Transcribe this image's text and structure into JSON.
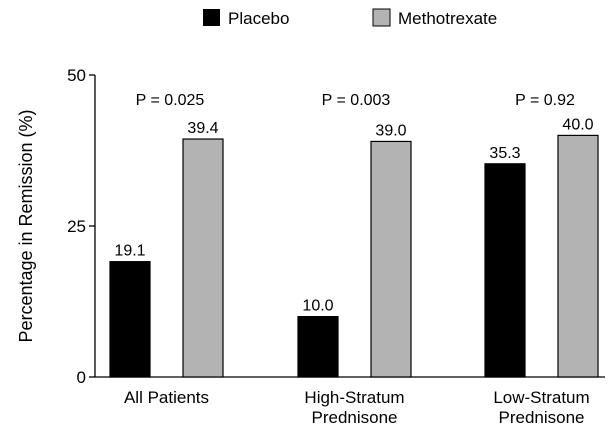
{
  "chart_data": {
    "type": "bar",
    "title": "",
    "xlabel": "",
    "ylabel": "Percentage in Remission (%)",
    "ylim": [
      0,
      50
    ],
    "yticks": [
      "0",
      "25",
      "50"
    ],
    "grid": false,
    "legend_position": "top",
    "categories": [
      [
        "All Patients"
      ],
      [
        "High-Stratum",
        "Prednisone"
      ],
      [
        "Low-Stratum",
        "Prednisone"
      ]
    ],
    "series": [
      {
        "name": "Placebo",
        "color": "#000000",
        "values": [
          19.1,
          10.0,
          35.3
        ],
        "labels": [
          "19.1",
          "10.0",
          "35.3"
        ]
      },
      {
        "name": "Methotrexate",
        "color": "#b3b3b3",
        "values": [
          39.4,
          39.0,
          40.0
        ],
        "labels": [
          "39.4",
          "39.0",
          "40.0"
        ]
      }
    ],
    "annotations": [
      "P = 0.025",
      "P = 0.003",
      "P = 0.92"
    ]
  }
}
